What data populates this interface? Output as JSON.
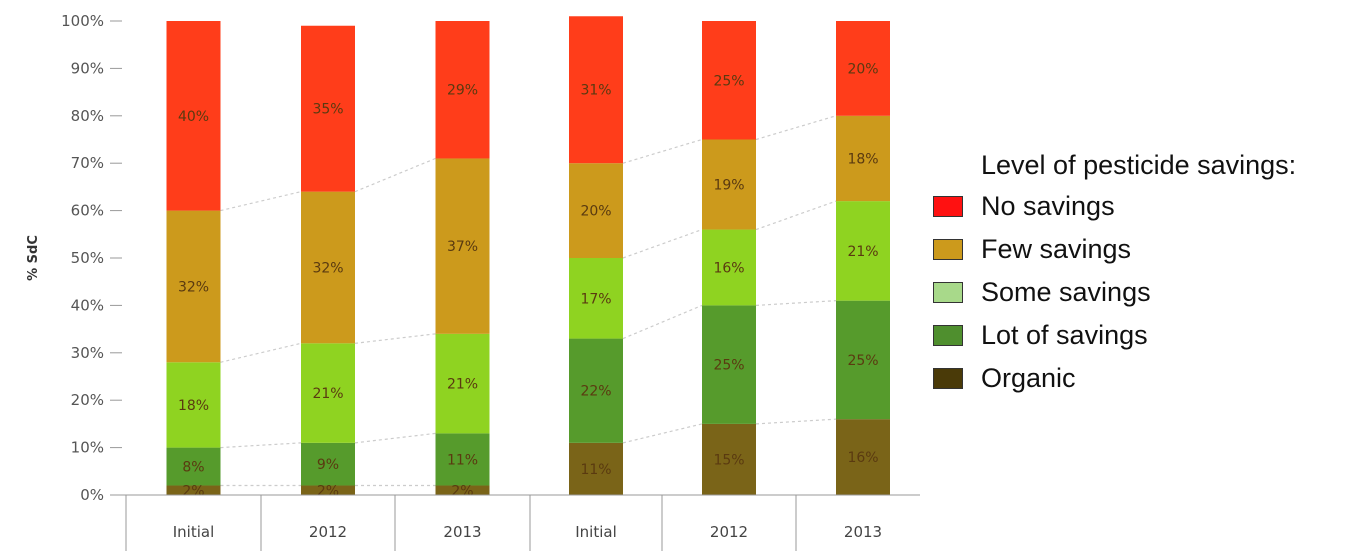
{
  "chart_data": {
    "type": "bar",
    "stacked": true,
    "ylabel": "% SdC",
    "yticks": [
      "0%",
      "10%",
      "20%",
      "30%",
      "40%",
      "50%",
      "60%",
      "70%",
      "80%",
      "90%",
      "100%"
    ],
    "ylim": [
      0,
      100
    ],
    "categories": [
      "Initial",
      "2012",
      "2013",
      "Initial",
      "2012",
      "2013"
    ],
    "series": [
      {
        "name": "Organic",
        "color": "#7a6418",
        "values": [
          2,
          2,
          2,
          11,
          15,
          16
        ],
        "labels": [
          "2%",
          "2%",
          "2%",
          "11%",
          "15%",
          "16%"
        ]
      },
      {
        "name": "Lot of savings",
        "color": "#569b2c",
        "values": [
          8,
          9,
          11,
          22,
          25,
          25
        ],
        "labels": [
          "8%",
          "9%",
          "11%",
          "22%",
          "25%",
          "25%"
        ]
      },
      {
        "name": "Some savings",
        "color": "#8fd321",
        "values": [
          18,
          21,
          21,
          17,
          16,
          21
        ],
        "labels": [
          "18%",
          "21%",
          "21%",
          "17%",
          "16%",
          "21%"
        ]
      },
      {
        "name": "Few savings",
        "color": "#cc9a1c",
        "values": [
          32,
          32,
          37,
          20,
          19,
          18
        ],
        "labels": [
          "32%",
          "32%",
          "37%",
          "20%",
          "19%",
          "18%"
        ]
      },
      {
        "name": "No savings",
        "color": "#ff3d1a",
        "values": [
          40,
          35,
          29,
          31,
          25,
          20
        ],
        "labels": [
          "40%",
          "35%",
          "29%",
          "31%",
          "25%",
          "20%"
        ]
      }
    ],
    "grid": false,
    "legend_position": "right"
  },
  "legend": {
    "title": "Level of pesticide savings:",
    "items": [
      {
        "label": "No savings",
        "color": "#ff1111"
      },
      {
        "label": "Few savings",
        "color": "#cc9a1c"
      },
      {
        "label": "Some savings",
        "color": "#a8d98a"
      },
      {
        "label": "Lot of savings",
        "color": "#4f8f2e"
      },
      {
        "label": "Organic",
        "color": "#4a3a08"
      }
    ]
  }
}
